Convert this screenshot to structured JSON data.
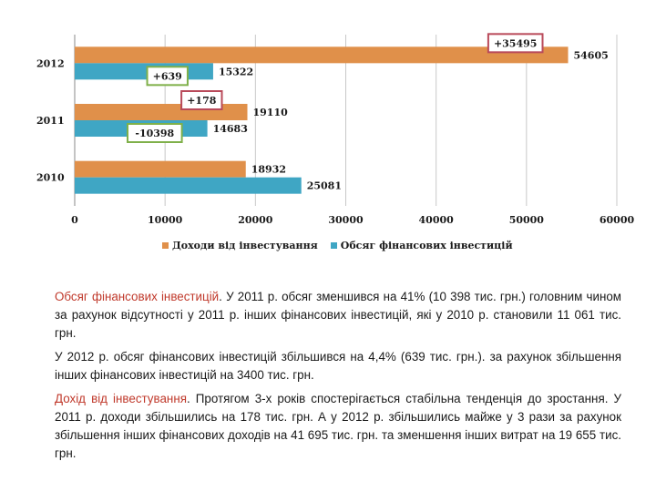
{
  "chart_data": {
    "type": "bar",
    "orientation": "horizontal",
    "categories": [
      "2010",
      "2011",
      "2012"
    ],
    "series": [
      {
        "name": "Доходи  від інвестування",
        "values": [
          18932,
          19110,
          54605
        ],
        "color": "#E0904A"
      },
      {
        "name": "Обсяг фінансових інвестицій",
        "values": [
          25081,
          14683,
          15322
        ],
        "color": "#3FA6C4"
      }
    ],
    "xlim": [
      0,
      60000
    ],
    "xticks": [
      0,
      10000,
      20000,
      30000,
      40000,
      50000,
      60000
    ],
    "grid": true,
    "legend_position": "bottom",
    "annotations": [
      {
        "text": "+35495",
        "category": "2012",
        "series": 0,
        "border": "#B94A5A"
      },
      {
        "text": "+639",
        "category": "2012",
        "series": 1,
        "border": "#7FB04A"
      },
      {
        "text": "+178",
        "category": "2011",
        "series": 0,
        "border": "#B94A5A"
      },
      {
        "text": "-10398",
        "category": "2011",
        "series": 1,
        "border": "#7FB04A"
      }
    ]
  },
  "text": {
    "p1_lead": "Обсяг фінансових інвестицій",
    "p1_rest": ". У 2011 р.  обсяг зменшився на 41% (10 398 тис. грн.) головним чином за рахунок відсутності у 2011 р. інших фінансових інвестицій, які у 2010 р. становили  11 061 тис. грн.",
    "p2": "У 2012 р. обсяг фінансових інвестицій збільшився на 4,4% (639 тис. грн.). за рахунок збільшення інших фінансових інвестицій на 3400 тис. грн.",
    "p3_lead": "Дохід від інвестування",
    "p3_rest": ". Протягом 3-х років спостерігається стабільна тенденція до зростання.  У 2011 р. доходи збільшились на  178 тис. грн. А у 2012 р. збільшились  майже у 3 рази за рахунок збільшення інших фінансових доходів на 41 695 тис. грн. та зменшення інших витрат на 19 655 тис. грн."
  }
}
